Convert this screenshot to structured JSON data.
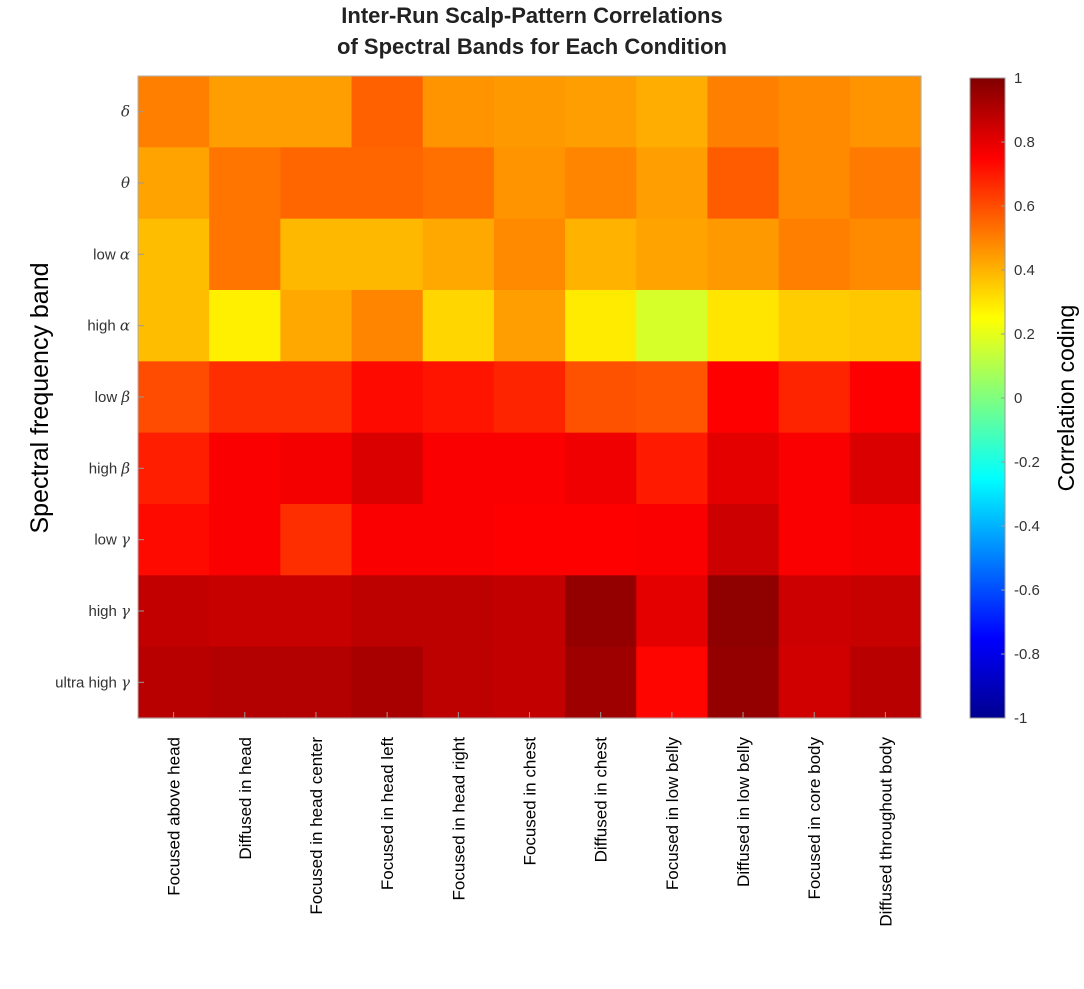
{
  "chart_data": {
    "type": "heatmap",
    "title": [
      "Inter-Run Scalp-Pattern Correlations",
      "of Spectral Bands for Each Condition"
    ],
    "ylabel": "Spectral frequency band",
    "colorbar_label": "Correlation coding",
    "colormap": "jet",
    "clim": [
      -1,
      1
    ],
    "colorbar_ticks": [
      "1",
      "0.8",
      "0.6",
      "0.4",
      "0.2",
      "0",
      "-0.2",
      "-0.4",
      "-0.6",
      "-0.8",
      "-1"
    ],
    "rows": [
      {
        "prefix": "",
        "symbol": "δ"
      },
      {
        "prefix": "",
        "symbol": "θ"
      },
      {
        "prefix": "low ",
        "symbol": "α"
      },
      {
        "prefix": "high ",
        "symbol": "α"
      },
      {
        "prefix": "low ",
        "symbol": "β"
      },
      {
        "prefix": "high ",
        "symbol": "β"
      },
      {
        "prefix": "low ",
        "symbol": "γ"
      },
      {
        "prefix": "high ",
        "symbol": "γ"
      },
      {
        "prefix": "ultra high ",
        "symbol": "γ"
      }
    ],
    "columns": [
      "Focused above head",
      "Diffused in head",
      "Focused in head center",
      "Focused in head left",
      "Focused in head right",
      "Focused in chest",
      "Diffused in chest",
      "Focused in low belly",
      "Diffused in low belly",
      "Focused in core body",
      "Diffused throughout body"
    ],
    "values": [
      [
        0.5,
        0.44,
        0.44,
        0.56,
        0.46,
        0.45,
        0.44,
        0.41,
        0.5,
        0.48,
        0.46
      ],
      [
        0.43,
        0.52,
        0.55,
        0.55,
        0.53,
        0.46,
        0.49,
        0.44,
        0.57,
        0.48,
        0.51
      ],
      [
        0.38,
        0.52,
        0.39,
        0.39,
        0.42,
        0.48,
        0.4,
        0.43,
        0.45,
        0.5,
        0.48
      ],
      [
        0.38,
        0.28,
        0.42,
        0.49,
        0.33,
        0.44,
        0.29,
        0.17,
        0.3,
        0.35,
        0.36
      ],
      [
        0.6,
        0.66,
        0.66,
        0.73,
        0.71,
        0.68,
        0.59,
        0.58,
        0.75,
        0.68,
        0.75
      ],
      [
        0.69,
        0.76,
        0.77,
        0.82,
        0.76,
        0.76,
        0.78,
        0.7,
        0.8,
        0.76,
        0.82
      ],
      [
        0.73,
        0.76,
        0.66,
        0.76,
        0.76,
        0.75,
        0.75,
        0.76,
        0.85,
        0.76,
        0.77
      ],
      [
        0.87,
        0.86,
        0.86,
        0.88,
        0.88,
        0.87,
        0.96,
        0.8,
        0.97,
        0.85,
        0.86
      ],
      [
        0.89,
        0.9,
        0.9,
        0.92,
        0.88,
        0.87,
        0.94,
        0.74,
        0.96,
        0.84,
        0.89
      ]
    ]
  }
}
